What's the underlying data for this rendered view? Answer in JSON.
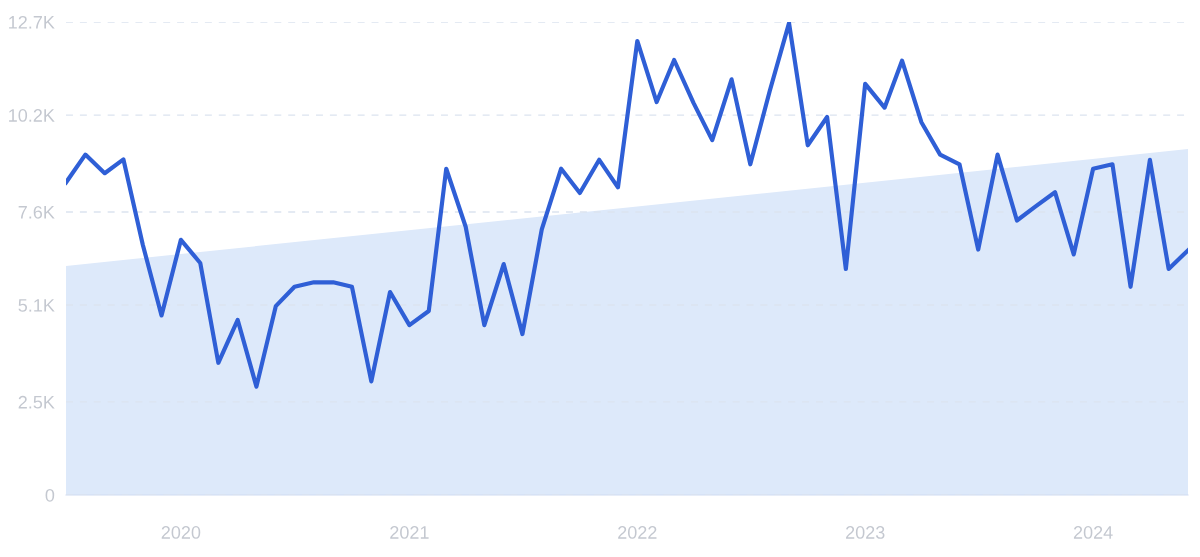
{
  "chart_data": {
    "type": "line",
    "x": [
      "2019-07",
      "2019-08",
      "2019-09",
      "2019-10",
      "2019-11",
      "2019-12",
      "2020-01",
      "2020-02",
      "2020-03",
      "2020-04",
      "2020-05",
      "2020-06",
      "2020-07",
      "2020-08",
      "2020-09",
      "2020-10",
      "2020-11",
      "2020-12",
      "2021-01",
      "2021-02",
      "2021-03",
      "2021-04",
      "2021-05",
      "2021-06",
      "2021-07",
      "2021-08",
      "2021-09",
      "2021-10",
      "2021-11",
      "2021-12",
      "2022-01",
      "2022-02",
      "2022-03",
      "2022-04",
      "2022-05",
      "2022-06",
      "2022-07",
      "2022-08",
      "2022-09",
      "2022-10",
      "2022-11",
      "2022-12",
      "2023-01",
      "2023-02",
      "2023-03",
      "2023-04",
      "2023-05",
      "2023-06",
      "2023-07",
      "2023-08",
      "2023-09",
      "2023-10",
      "2023-11",
      "2023-12",
      "2024-01",
      "2024-02",
      "2024-03",
      "2024-04",
      "2024-05",
      "2024-06"
    ],
    "series": [
      {
        "type": "area",
        "x": [
          "2019-07",
          "2024-06"
        ],
        "color": "#dde9fa",
        "values": [
          6150,
          9290
        ]
      },
      {
        "color": "#2f5fd6",
        "values": [
          8390,
          9140,
          8640,
          9010,
          6720,
          4820,
          6850,
          6230,
          3550,
          4700,
          2910,
          5070,
          5590,
          5710,
          5710,
          5590,
          3050,
          5450,
          4560,
          4940,
          8760,
          7210,
          4560,
          6200,
          4320,
          7130,
          8760,
          8110,
          9000,
          8260,
          12190,
          10550,
          11680,
          10530,
          9530,
          11160,
          8880,
          10840,
          12670,
          9390,
          10150,
          6070,
          11040,
          10400,
          11660,
          10010,
          9140,
          8880,
          6590,
          9140,
          7370,
          7750,
          8130,
          6460,
          8760,
          8880,
          5590,
          9000,
          6070,
          6570
        ]
      }
    ],
    "xlim": [
      "2019-07",
      "2024-06"
    ],
    "xticks": [
      {
        "value": "2020-01",
        "label": "2020"
      },
      {
        "value": "2021-01",
        "label": "2021"
      },
      {
        "value": "2022-01",
        "label": "2022"
      },
      {
        "value": "2023-01",
        "label": "2023"
      },
      {
        "value": "2024-01",
        "label": "2024"
      }
    ],
    "ylim": [
      0,
      12700
    ],
    "yticks": [
      0,
      {
        "value": 2500,
        "label": "2.5K"
      },
      {
        "value": 5100,
        "label": "5.1K"
      },
      {
        "value": 7600,
        "label": "7.6K"
      },
      {
        "value": 10200,
        "label": "10.2K"
      },
      {
        "value": 12700,
        "label": "12.7K"
      }
    ],
    "grid": "y"
  }
}
